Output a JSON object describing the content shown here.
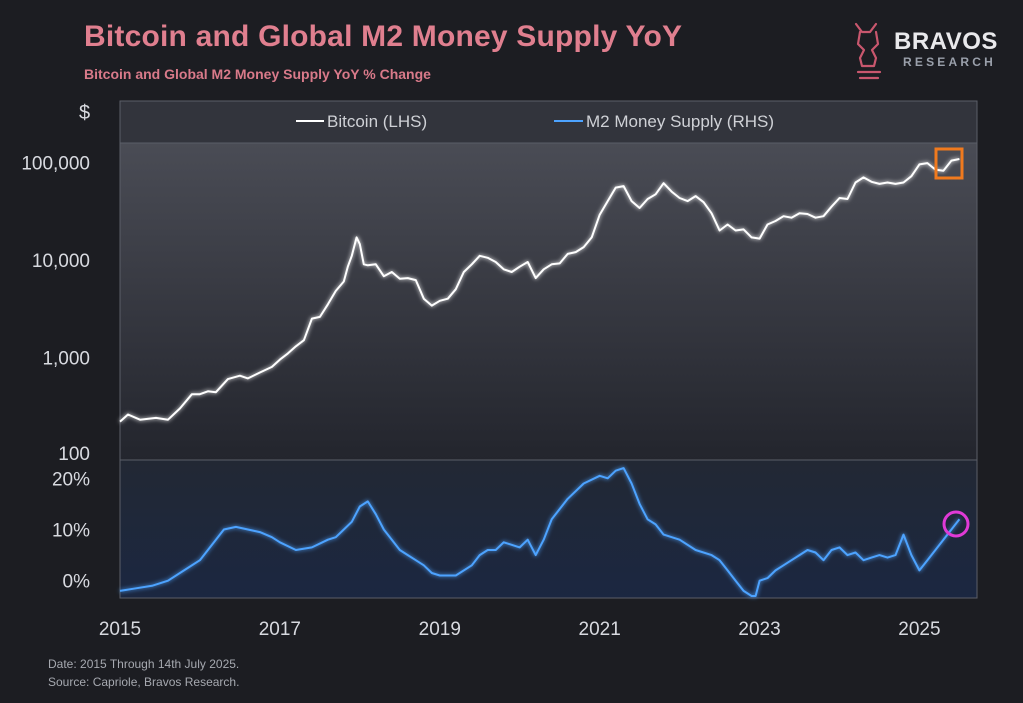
{
  "header": {
    "title": "Bitcoin and Global M2 Money Supply YoY",
    "subtitle": "Bitcoin and Global M2 Money Supply YoY % Change"
  },
  "brand": {
    "name": "BRAVOS",
    "sub": "RESEARCH"
  },
  "footer": {
    "date": "Date: 2015 Through 14th July 2025.",
    "source": "Source: Capriole, Bravos Research."
  },
  "colors": {
    "background": "#1c1d22",
    "bitcoin_line": "#ffffff",
    "m2_line": "#4da3ff",
    "title": "#e07f8f",
    "highlight_box": "#f07a1e",
    "highlight_circle": "#e03ad6"
  },
  "chart_data": [
    {
      "type": "line",
      "title": "Bitcoin and Global M2 Money Supply YoY",
      "ylabel": "$",
      "yscale": "log",
      "ylim": [
        100,
        140000
      ],
      "xlim": [
        2015.0,
        2025.72
      ],
      "y_ticks": [
        100,
        1000,
        10000,
        100000
      ],
      "y_tick_labels": [
        "100",
        "1,000",
        "10,000",
        "100,000"
      ],
      "legend": [
        "Bitcoin (LHS)",
        "M2 Money Supply (RHS)"
      ],
      "legend_position": "top",
      "annotation": "orange box around latest Bitcoin value",
      "series": [
        {
          "name": "Bitcoin (LHS)",
          "x": [
            2015.0,
            2015.1,
            2015.25,
            2015.45,
            2015.6,
            2015.75,
            2015.9,
            2016.0,
            2016.1,
            2016.2,
            2016.35,
            2016.5,
            2016.6,
            2016.75,
            2016.9,
            2017.0,
            2017.1,
            2017.2,
            2017.3,
            2017.4,
            2017.5,
            2017.6,
            2017.7,
            2017.8,
            2017.85,
            2017.9,
            2017.96,
            2018.0,
            2018.05,
            2018.1,
            2018.2,
            2018.3,
            2018.4,
            2018.5,
            2018.6,
            2018.7,
            2018.8,
            2018.9,
            2019.0,
            2019.1,
            2019.2,
            2019.3,
            2019.4,
            2019.5,
            2019.6,
            2019.7,
            2019.8,
            2019.9,
            2020.0,
            2020.1,
            2020.2,
            2020.3,
            2020.4,
            2020.5,
            2020.6,
            2020.7,
            2020.8,
            2020.9,
            2021.0,
            2021.1,
            2021.2,
            2021.3,
            2021.4,
            2021.5,
            2021.6,
            2021.7,
            2021.8,
            2021.9,
            2022.0,
            2022.1,
            2022.2,
            2022.3,
            2022.4,
            2022.5,
            2022.6,
            2022.7,
            2022.8,
            2022.9,
            2023.0,
            2023.1,
            2023.2,
            2023.3,
            2023.4,
            2023.5,
            2023.6,
            2023.7,
            2023.8,
            2023.9,
            2024.0,
            2024.1,
            2024.2,
            2024.3,
            2024.4,
            2024.5,
            2024.6,
            2024.7,
            2024.8,
            2024.9,
            2025.0,
            2025.1,
            2025.2,
            2025.3,
            2025.4,
            2025.5
          ],
          "values": [
            220,
            260,
            230,
            240,
            230,
            300,
            420,
            420,
            450,
            440,
            600,
            650,
            610,
            700,
            800,
            950,
            1100,
            1300,
            1500,
            2500,
            2600,
            3500,
            4800,
            6000,
            8500,
            11000,
            17000,
            14500,
            9000,
            8800,
            9000,
            6800,
            7500,
            6400,
            6500,
            6200,
            4000,
            3400,
            3800,
            4000,
            5000,
            7500,
            9000,
            11000,
            10500,
            9500,
            8000,
            7500,
            8500,
            9500,
            6500,
            8000,
            9000,
            9200,
            11500,
            12000,
            13500,
            17000,
            29000,
            40000,
            55000,
            57000,
            40000,
            34000,
            42000,
            47000,
            61000,
            50000,
            43000,
            40000,
            45000,
            39000,
            30000,
            20000,
            23000,
            20000,
            20500,
            17000,
            16500,
            23000,
            25000,
            28000,
            27000,
            30000,
            29500,
            27000,
            28000,
            35000,
            43000,
            42000,
            62000,
            70000,
            63000,
            60000,
            62000,
            60000,
            62000,
            72000,
            95000,
            98000,
            84000,
            82000,
            104000,
            108000
          ]
        }
      ]
    },
    {
      "type": "line",
      "ylabel": "",
      "ylim": [
        -3,
        23
      ],
      "xlim": [
        2015.0,
        2025.72
      ],
      "y_ticks": [
        0,
        10,
        20
      ],
      "y_tick_labels": [
        "0%",
        "10%",
        "20%"
      ],
      "x_ticks": [
        2015,
        2017,
        2019,
        2021,
        2023,
        2025
      ],
      "x_tick_labels": [
        "2015",
        "2017",
        "2019",
        "2021",
        "2023",
        "2025"
      ],
      "annotation": "magenta circle around latest M2 YoY value",
      "series": [
        {
          "name": "M2 Money Supply (RHS)",
          "x": [
            2015.0,
            2015.2,
            2015.4,
            2015.6,
            2015.8,
            2016.0,
            2016.1,
            2016.2,
            2016.3,
            2016.45,
            2016.6,
            2016.75,
            2016.9,
            2017.0,
            2017.2,
            2017.4,
            2017.6,
            2017.7,
            2017.8,
            2017.9,
            2018.0,
            2018.1,
            2018.2,
            2018.3,
            2018.4,
            2018.5,
            2018.6,
            2018.7,
            2018.8,
            2018.9,
            2019.0,
            2019.2,
            2019.4,
            2019.5,
            2019.6,
            2019.7,
            2019.8,
            2019.9,
            2020.0,
            2020.1,
            2020.2,
            2020.3,
            2020.4,
            2020.5,
            2020.6,
            2020.8,
            2021.0,
            2021.1,
            2021.2,
            2021.3,
            2021.4,
            2021.5,
            2021.6,
            2021.7,
            2021.8,
            2022.0,
            2022.2,
            2022.4,
            2022.5,
            2022.6,
            2022.7,
            2022.8,
            2022.9,
            2022.95,
            2023.0,
            2023.1,
            2023.2,
            2023.3,
            2023.4,
            2023.5,
            2023.6,
            2023.7,
            2023.8,
            2023.9,
            2024.0,
            2024.1,
            2024.2,
            2024.3,
            2024.4,
            2024.5,
            2024.6,
            2024.7,
            2024.8,
            2024.9,
            2025.0,
            2025.1,
            2025.2,
            2025.3,
            2025.4,
            2025.5
          ],
          "values": [
            -2,
            -1.5,
            -1,
            0,
            2,
            4,
            6,
            8,
            10,
            10.5,
            10,
            9.5,
            8.5,
            7.5,
            6,
            6.5,
            8,
            8.5,
            10,
            11.5,
            14.5,
            15.5,
            13,
            10,
            8,
            6,
            5,
            4,
            3,
            1.5,
            1,
            1,
            3,
            5,
            6,
            6,
            7.5,
            7,
            6.5,
            8,
            5,
            8,
            12,
            14,
            16,
            19,
            20.5,
            20,
            21.5,
            22,
            19,
            15,
            12,
            11,
            9,
            8,
            6,
            5,
            4,
            2,
            0,
            -2,
            -3,
            -3,
            0,
            0.5,
            2,
            3,
            4,
            5,
            6,
            5.5,
            4,
            6,
            6.5,
            5,
            5.5,
            4,
            4.5,
            5,
            4.5,
            5,
            9,
            5,
            2,
            4,
            6,
            8,
            10,
            12
          ]
        }
      ]
    }
  ]
}
